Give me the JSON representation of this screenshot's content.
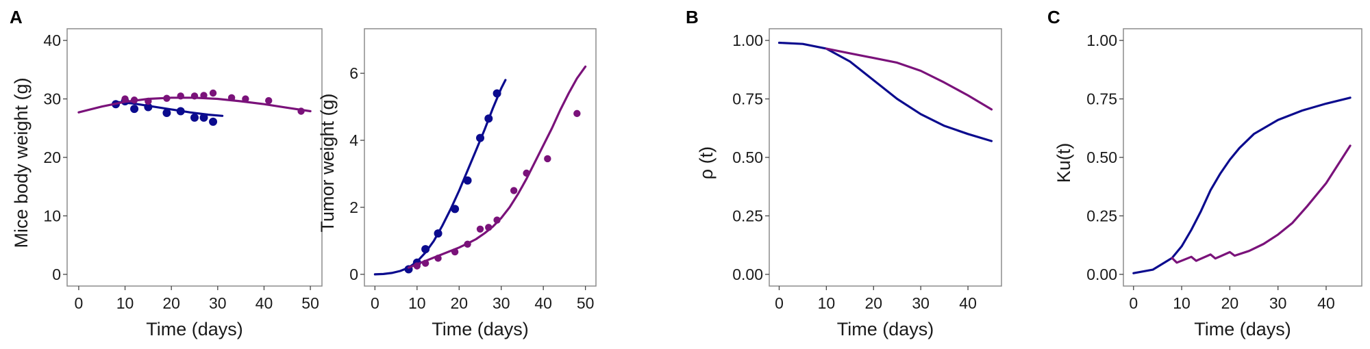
{
  "panel_letters": [
    "A",
    "B",
    "C"
  ],
  "colors": {
    "blue": "#0b0b8e",
    "purple": "#7a127a",
    "frame": "#8c8c8c"
  },
  "chart_data": [
    {
      "type": "line+scatter",
      "panel": "A",
      "xlabel": "Time (days)",
      "ylabel": "Mice body weight (g)",
      "xlim": [
        -2.5,
        52.5
      ],
      "ylim": [
        -2,
        42
      ],
      "xticks": [
        "0",
        "10",
        "20",
        "30",
        "40",
        "50"
      ],
      "yticks": [
        "0",
        "10",
        "20",
        "30",
        "40"
      ],
      "series": [
        {
          "color": "blue",
          "points": [
            [
              8,
              29.1
            ],
            [
              10,
              29.6
            ],
            [
              12,
              28.3
            ],
            [
              15,
              28.6
            ],
            [
              19,
              27.6
            ],
            [
              22,
              27.9
            ],
            [
              25,
              26.8
            ],
            [
              27,
              26.8
            ],
            [
              29,
              26.1
            ]
          ],
          "line": [
            [
              8,
              29.5
            ],
            [
              12,
              29.2
            ],
            [
              16,
              28.7
            ],
            [
              20,
              28.2
            ],
            [
              24,
              27.7
            ],
            [
              28,
              27.3
            ],
            [
              31,
              27.1
            ]
          ]
        },
        {
          "color": "purple",
          "points": [
            [
              10,
              30
            ],
            [
              12,
              29.8
            ],
            [
              15,
              29.6
            ],
            [
              19,
              30.1
            ],
            [
              22,
              30.5
            ],
            [
              25,
              30.5
            ],
            [
              27,
              30.6
            ],
            [
              29,
              31
            ],
            [
              33,
              30.2
            ],
            [
              36,
              30
            ],
            [
              41,
              29.7
            ],
            [
              48,
              27.9
            ]
          ],
          "line": [
            [
              0,
              27.7
            ],
            [
              5,
              28.7
            ],
            [
              10,
              29.5
            ],
            [
              15,
              30.0
            ],
            [
              20,
              30.2
            ],
            [
              25,
              30.2
            ],
            [
              30,
              30.0
            ],
            [
              35,
              29.6
            ],
            [
              40,
              29.1
            ],
            [
              45,
              28.5
            ],
            [
              50,
              27.9
            ]
          ]
        }
      ]
    },
    {
      "type": "line+scatter",
      "panel": "A",
      "xlabel": "Time (days)",
      "ylabel": "Tumor weight (g)",
      "xlim": [
        -2.5,
        52.5
      ],
      "ylim": [
        -0.35,
        7.33
      ],
      "xticks": [
        "0",
        "10",
        "20",
        "30",
        "40",
        "50"
      ],
      "yticks": [
        "0",
        "2",
        "4",
        "6"
      ],
      "series": [
        {
          "color": "blue",
          "points": [
            [
              8,
              0.15
            ],
            [
              10,
              0.35
            ],
            [
              12,
              0.75
            ],
            [
              15,
              1.22
            ],
            [
              19,
              1.95
            ],
            [
              22,
              2.8
            ],
            [
              25,
              4.07
            ],
            [
              27,
              4.65
            ],
            [
              29,
              5.4
            ]
          ],
          "line": [
            [
              0,
              0
            ],
            [
              2,
              0.01
            ],
            [
              4,
              0.04
            ],
            [
              6,
              0.1
            ],
            [
              8,
              0.2
            ],
            [
              10,
              0.38
            ],
            [
              12,
              0.65
            ],
            [
              14,
              1.0
            ],
            [
              16,
              1.45
            ],
            [
              18,
              1.95
            ],
            [
              20,
              2.5
            ],
            [
              22,
              3.1
            ],
            [
              24,
              3.7
            ],
            [
              26,
              4.3
            ],
            [
              28,
              4.95
            ],
            [
              30,
              5.55
            ],
            [
              31,
              5.8
            ]
          ]
        },
        {
          "color": "purple",
          "points": [
            [
              10,
              0.25
            ],
            [
              12,
              0.33
            ],
            [
              15,
              0.48
            ],
            [
              19,
              0.67
            ],
            [
              22,
              0.9
            ],
            [
              25,
              1.35
            ],
            [
              27,
              1.4
            ],
            [
              29,
              1.62
            ],
            [
              33,
              2.5
            ],
            [
              36,
              3.02
            ],
            [
              41,
              3.45
            ],
            [
              48,
              4.8
            ]
          ],
          "line": [
            [
              8,
              0.2
            ],
            [
              10,
              0.3
            ],
            [
              12,
              0.4
            ],
            [
              14,
              0.5
            ],
            [
              16,
              0.6
            ],
            [
              18,
              0.7
            ],
            [
              20,
              0.8
            ],
            [
              22,
              0.92
            ],
            [
              24,
              1.05
            ],
            [
              26,
              1.22
            ],
            [
              28,
              1.42
            ],
            [
              30,
              1.68
            ],
            [
              32,
              2.0
            ],
            [
              34,
              2.4
            ],
            [
              36,
              2.85
            ],
            [
              38,
              3.35
            ],
            [
              40,
              3.85
            ],
            [
              42,
              4.35
            ],
            [
              44,
              4.9
            ],
            [
              46,
              5.4
            ],
            [
              48,
              5.85
            ],
            [
              50,
              6.2
            ]
          ]
        }
      ]
    },
    {
      "type": "line",
      "panel": "B",
      "xlabel": "Time (days)",
      "ylabel": "ρ (t)",
      "xlim": [
        -2.1,
        47.1
      ],
      "ylim": [
        -0.05,
        1.05
      ],
      "xticks": [
        "0",
        "10",
        "20",
        "30",
        "40"
      ],
      "yticks": [
        "0.00",
        "0.25",
        "0.50",
        "0.75",
        "1.00"
      ],
      "series": [
        {
          "color": "blue",
          "line": [
            [
              0,
              0.99
            ],
            [
              5,
              0.985
            ],
            [
              10,
              0.965
            ],
            [
              15,
              0.91
            ],
            [
              20,
              0.83
            ],
            [
              25,
              0.75
            ],
            [
              30,
              0.685
            ],
            [
              35,
              0.635
            ],
            [
              40,
              0.6
            ],
            [
              45,
              0.57
            ]
          ]
        },
        {
          "color": "purple",
          "line": [
            [
              10,
              0.965
            ],
            [
              15,
              0.945
            ],
            [
              20,
              0.925
            ],
            [
              25,
              0.905
            ],
            [
              30,
              0.87
            ],
            [
              35,
              0.82
            ],
            [
              40,
              0.765
            ],
            [
              45,
              0.705
            ]
          ]
        }
      ]
    },
    {
      "type": "line",
      "panel": "C",
      "xlabel": "Time (days)",
      "ylabel": "Ku(t)",
      "xlim": [
        -2.1,
        47.4
      ],
      "ylim": [
        -0.05,
        1.05
      ],
      "xticks": [
        "0",
        "10",
        "20",
        "30",
        "40"
      ],
      "yticks": [
        "0.00",
        "0.25",
        "0.50",
        "0.75",
        "1.00"
      ],
      "series": [
        {
          "color": "blue",
          "line": [
            [
              0,
              0.005
            ],
            [
              4,
              0.02
            ],
            [
              8,
              0.07
            ],
            [
              10,
              0.12
            ],
            [
              12,
              0.19
            ],
            [
              14,
              0.27
            ],
            [
              16,
              0.36
            ],
            [
              18,
              0.43
            ],
            [
              20,
              0.49
            ],
            [
              22,
              0.54
            ],
            [
              25,
              0.6
            ],
            [
              30,
              0.66
            ],
            [
              35,
              0.7
            ],
            [
              40,
              0.73
            ],
            [
              45,
              0.755
            ]
          ]
        },
        {
          "color": "purple",
          "line": [
            [
              8,
              0.07
            ],
            [
              9,
              0.05
            ],
            [
              12,
              0.075
            ],
            [
              13,
              0.058
            ],
            [
              16,
              0.085
            ],
            [
              17,
              0.068
            ],
            [
              20,
              0.095
            ],
            [
              21,
              0.08
            ],
            [
              24,
              0.1
            ],
            [
              27,
              0.13
            ],
            [
              30,
              0.17
            ],
            [
              33,
              0.22
            ],
            [
              36,
              0.29
            ],
            [
              40,
              0.39
            ],
            [
              45,
              0.55
            ]
          ]
        }
      ]
    }
  ]
}
